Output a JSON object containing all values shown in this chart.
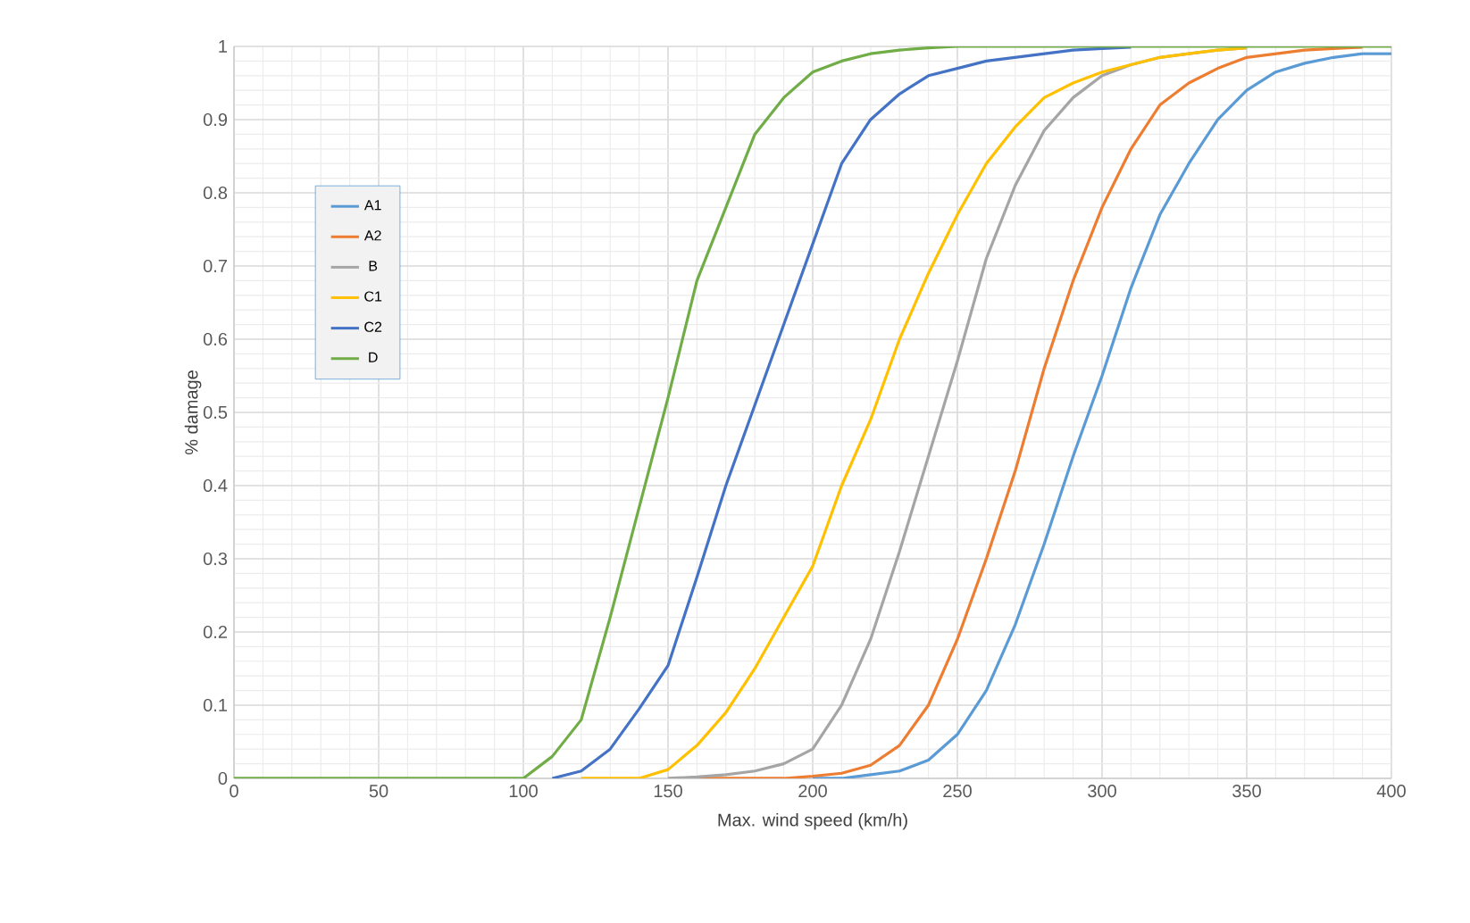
{
  "chart_data": {
    "type": "line",
    "xlabel": "Max. wind speed (km/h)",
    "ylabel": "% damage",
    "x": [
      0,
      10,
      20,
      30,
      40,
      50,
      60,
      70,
      80,
      90,
      100,
      110,
      120,
      130,
      140,
      150,
      160,
      170,
      180,
      190,
      200,
      210,
      220,
      230,
      240,
      250,
      260,
      270,
      280,
      290,
      300,
      310,
      320,
      330,
      340,
      350,
      360,
      370,
      380,
      390,
      400
    ],
    "series": [
      {
        "name": "A1",
        "color": "#5b9bd5",
        "values": [
          null,
          null,
          null,
          null,
          null,
          null,
          null,
          null,
          null,
          null,
          null,
          null,
          null,
          null,
          null,
          null,
          null,
          null,
          null,
          null,
          0,
          0,
          0.005,
          0.01,
          0.025,
          0.06,
          0.12,
          0.21,
          0.32,
          0.44,
          0.55,
          0.67,
          0.77,
          0.84,
          0.9,
          0.94,
          0.965,
          0.977,
          0.985,
          0.99,
          0.99
        ]
      },
      {
        "name": "A2",
        "color": "#ed7d31",
        "values": [
          null,
          null,
          null,
          null,
          null,
          null,
          null,
          null,
          null,
          null,
          null,
          null,
          null,
          null,
          null,
          null,
          0,
          0,
          0,
          0,
          0.003,
          0.007,
          0.018,
          0.045,
          0.1,
          0.19,
          0.3,
          0.42,
          0.56,
          0.68,
          0.78,
          0.86,
          0.92,
          0.95,
          0.97,
          0.985,
          0.99,
          0.995,
          0.997,
          0.999,
          null
        ]
      },
      {
        "name": "B",
        "color": "#a5a5a5",
        "values": [
          null,
          null,
          null,
          null,
          null,
          null,
          null,
          null,
          null,
          null,
          null,
          null,
          null,
          null,
          null,
          0,
          0.002,
          0.005,
          0.01,
          0.02,
          0.04,
          0.1,
          0.19,
          0.31,
          0.44,
          0.57,
          0.71,
          0.81,
          0.885,
          0.93,
          0.96,
          0.975,
          0.985,
          0.99,
          0.995,
          0.998,
          null,
          null,
          null,
          null,
          null
        ]
      },
      {
        "name": "C1",
        "color": "#ffc000",
        "values": [
          null,
          null,
          null,
          null,
          null,
          null,
          null,
          null,
          null,
          null,
          null,
          null,
          0,
          0,
          0,
          0.012,
          0.045,
          0.09,
          0.15,
          0.22,
          0.29,
          0.4,
          0.49,
          0.6,
          0.69,
          0.77,
          0.84,
          0.89,
          0.93,
          0.95,
          0.965,
          0.975,
          0.985,
          0.99,
          0.995,
          0.998,
          null,
          null,
          null,
          null,
          null
        ]
      },
      {
        "name": "C2",
        "color": "#4472c4",
        "values": [
          null,
          null,
          null,
          null,
          null,
          null,
          null,
          null,
          null,
          null,
          null,
          0,
          0.01,
          0.04,
          0.095,
          0.154,
          0.275,
          0.4,
          0.51,
          0.62,
          0.73,
          0.84,
          0.9,
          0.935,
          0.96,
          0.97,
          0.98,
          0.985,
          0.99,
          0.995,
          0.997,
          0.999,
          null,
          null,
          null,
          null,
          null,
          null,
          null,
          null,
          null
        ]
      },
      {
        "name": "D",
        "color": "#70ad47",
        "values": [
          0,
          0,
          0,
          0,
          0,
          0,
          0,
          0,
          0,
          0,
          0,
          0.03,
          0.08,
          0.22,
          0.37,
          0.52,
          0.68,
          0.78,
          0.88,
          0.93,
          0.965,
          0.98,
          0.99,
          0.995,
          0.998,
          1,
          1,
          1,
          1,
          1,
          1,
          1,
          1,
          1,
          1,
          1,
          1,
          1,
          1,
          1,
          1
        ]
      }
    ],
    "xlim": [
      0,
      400
    ],
    "xticks": [
      0,
      50,
      100,
      150,
      200,
      250,
      300,
      350,
      400
    ],
    "ylim": [
      0,
      1
    ],
    "yticks": [
      0,
      0.1,
      0.2,
      0.3,
      0.4,
      0.5,
      0.6,
      0.7,
      0.8,
      0.9,
      1
    ],
    "grid": true,
    "legend": "left",
    "marker": "none",
    "line_style": "solid"
  }
}
